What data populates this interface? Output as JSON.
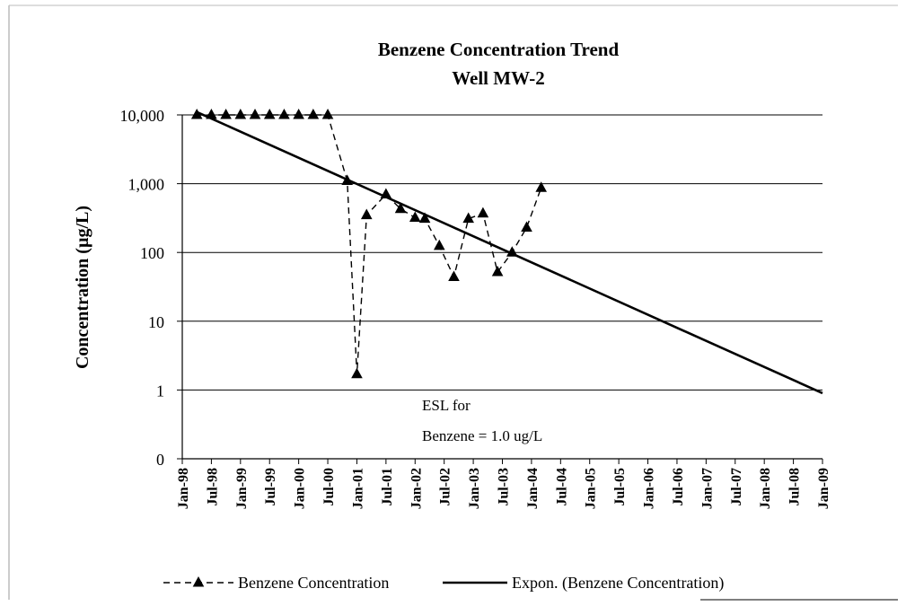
{
  "chart_data": {
    "type": "line",
    "title": "Benzene Concentration Trend",
    "subtitle": "Well MW-2",
    "y_label": "Concentration (µg/L)",
    "log_scale": true,
    "grid": true,
    "legend": "bottom",
    "annotations": [
      "ESL for",
      "Benzene = 1.0 ug/L"
    ],
    "xlim": [
      "1998-01",
      "2009-01"
    ],
    "xticks": [
      {
        "value": "1998-01",
        "label": "Jan-98"
      },
      {
        "value": "1998-07",
        "label": "Jul-98"
      },
      {
        "value": "1999-01",
        "label": "Jan-99"
      },
      {
        "value": "1999-07",
        "label": "Jul-99"
      },
      {
        "value": "2000-01",
        "label": "Jan-00"
      },
      {
        "value": "2000-07",
        "label": "Jul-00"
      },
      {
        "value": "2001-01",
        "label": "Jan-01"
      },
      {
        "value": "2001-07",
        "label": "Jul-01"
      },
      {
        "value": "2002-01",
        "label": "Jan-02"
      },
      {
        "value": "2002-07",
        "label": "Jul-02"
      },
      {
        "value": "2003-01",
        "label": "Jan-03"
      },
      {
        "value": "2003-07",
        "label": "Jul-03"
      },
      {
        "value": "2004-01",
        "label": "Jan-04"
      },
      {
        "value": "2004-07",
        "label": "Jul-04"
      },
      {
        "value": "2005-01",
        "label": "Jan-05"
      },
      {
        "value": "2005-07",
        "label": "Jul-05"
      },
      {
        "value": "2006-01",
        "label": "Jan-06"
      },
      {
        "value": "2006-07",
        "label": "Jul-06"
      },
      {
        "value": "2007-01",
        "label": "Jan-07"
      },
      {
        "value": "2007-07",
        "label": "Jul-07"
      },
      {
        "value": "2008-01",
        "label": "Jan-08"
      },
      {
        "value": "2008-07",
        "label": "Jul-08"
      },
      {
        "value": "2009-01",
        "label": "Jan-09"
      }
    ],
    "ylim": [
      0.1,
      10000
    ],
    "yticks": [
      {
        "value": 0.1,
        "label": "0"
      },
      1,
      10,
      100,
      {
        "value": 1000,
        "label": "1,000"
      },
      {
        "value": 10000,
        "label": "10,000"
      }
    ],
    "series": [
      {
        "name": "Benzene Concentration",
        "color": "#000000",
        "style": "dashed",
        "x": [
          "1998-04",
          "1998-07",
          "1998-10",
          "1999-01",
          "1999-04",
          "1999-07",
          "1999-10",
          "2000-01",
          "2000-04",
          "2000-07",
          "2000-11",
          "2001-01",
          "2001-03",
          "2001-07",
          "2001-10",
          "2002-01",
          "2002-03",
          "2002-06",
          "2002-09",
          "2002-12",
          "2003-03",
          "2003-06",
          "2003-09",
          "2003-12",
          "2004-03"
        ],
        "values": [
          10000,
          10000,
          10000,
          10000,
          10000,
          10000,
          10000,
          10000,
          10000,
          10000,
          1100,
          1.7,
          350,
          700,
          430,
          320,
          310,
          125,
          44,
          310,
          370,
          52,
          100,
          230,
          870
        ]
      },
      {
        "name": "Expon. (Benzene Concentration)",
        "color": "#000000",
        "style": "solid",
        "x": [
          "1998-04",
          "2009-01"
        ],
        "values": [
          11000,
          0.9
        ]
      }
    ]
  }
}
